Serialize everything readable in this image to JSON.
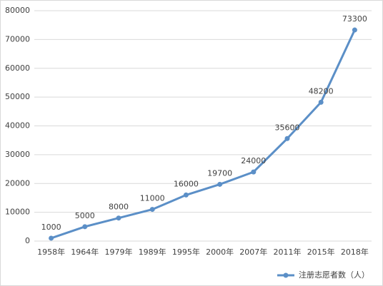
{
  "chart_data": {
    "type": "line",
    "categories": [
      "1958年",
      "1964年",
      "1979年",
      "1989年",
      "1995年",
      "2000年",
      "2007年",
      "2011年",
      "2015年",
      "2018年"
    ],
    "series": [
      {
        "name": "注册志愿者数（人）",
        "color": "#5b8fc7",
        "values": [
          1000,
          5000,
          8000,
          11000,
          16000,
          19700,
          24000,
          35600,
          48200,
          73300
        ]
      }
    ],
    "ylim": [
      0,
      80000
    ],
    "yticks": [
      0,
      10000,
      20000,
      30000,
      40000,
      50000,
      60000,
      70000,
      80000
    ],
    "grid": true,
    "legend": "bottom-right"
  }
}
